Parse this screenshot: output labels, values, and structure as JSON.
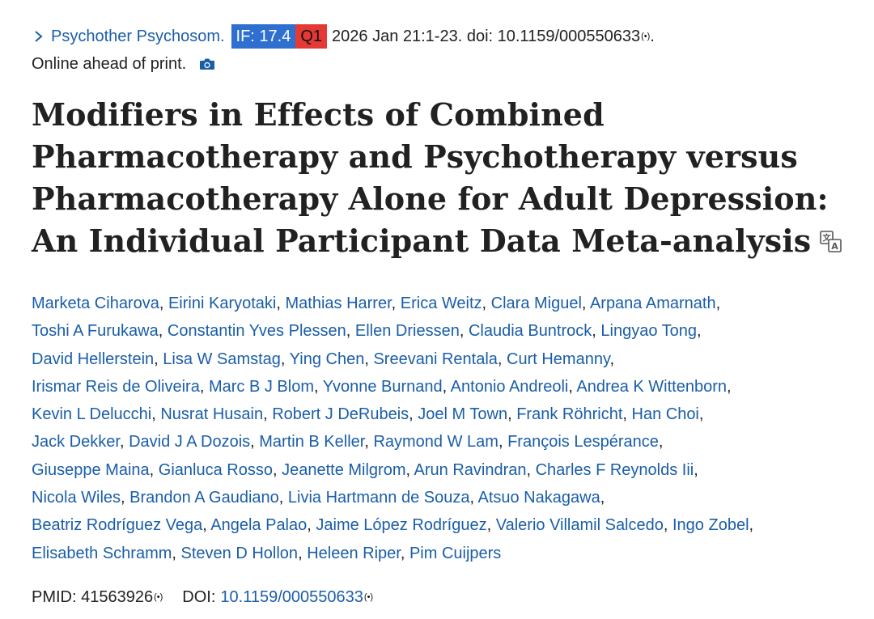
{
  "citation": {
    "journal": "Psychother Psychosom.",
    "if_badge": "IF: 17.4",
    "q_badge": "Q1",
    "date_pages": "2026 Jan 21:1-23. doi: 10.1159/000550633",
    "signal": "(•)",
    "period": ".",
    "online": "Online ahead of print."
  },
  "title": "Modifiers in Effects of Combined Pharmacotherapy and Psychotherapy versus Pharmacotherapy Alone for Adult Depression: An Individual Participant Data Meta-analysis",
  "authors": [
    "Marketa Ciharova",
    "Eirini Karyotaki",
    "Mathias Harrer",
    "Erica Weitz",
    "Clara Miguel",
    "Arpana Amarnath",
    "Toshi A Furukawa",
    "Constantin Yves Plessen",
    "Ellen Driessen",
    "Claudia Buntrock",
    "Lingyao Tong",
    "David Hellerstein",
    "Lisa W Samstag",
    "Ying Chen",
    "Sreevani Rentala",
    "Curt Hemanny",
    "Irismar Reis de Oliveira",
    "Marc B J Blom",
    "Yvonne Burnand",
    "Antonio Andreoli",
    "Andrea K Wittenborn",
    "Kevin L Delucchi",
    "Nusrat Husain",
    "Robert J DeRubeis",
    "Joel M Town",
    "Frank Röhricht",
    "Han Choi",
    "Jack Dekker",
    "David J A Dozois",
    "Martin B Keller",
    "Raymond W Lam",
    "François Lespérance",
    "Giuseppe Maina",
    "Gianluca Rosso",
    "Jeanette Milgrom",
    "Arun Ravindran",
    "Charles F Reynolds Iii",
    "Nicola Wiles",
    "Brandon A Gaudiano",
    "Livia Hartmann de Souza",
    "Atsuo Nakagawa",
    "Beatriz Rodríguez Vega",
    "Angela Palao",
    "Jaime López Rodríguez",
    "Valerio Villamil Salcedo",
    "Ingo Zobel",
    "Elisabeth Schramm",
    "Steven D Hollon",
    "Heleen Riper",
    "Pim Cuijpers"
  ],
  "line_breaks_after": [
    5,
    10,
    15,
    20,
    26,
    31,
    36,
    40,
    45
  ],
  "ids": {
    "pmid_label": "PMID: 41563926",
    "doi_label": "DOI:",
    "doi_value": "10.1159/000550633",
    "signal": "(•)"
  },
  "icons": {
    "chevron": "chevron-right-icon",
    "camera": "camera-icon",
    "translate": "translate-icon"
  },
  "colors": {
    "link": "#1a5ea8",
    "if_badge": "#2f6fd0",
    "q_badge": "#e53935",
    "text": "#212121"
  }
}
